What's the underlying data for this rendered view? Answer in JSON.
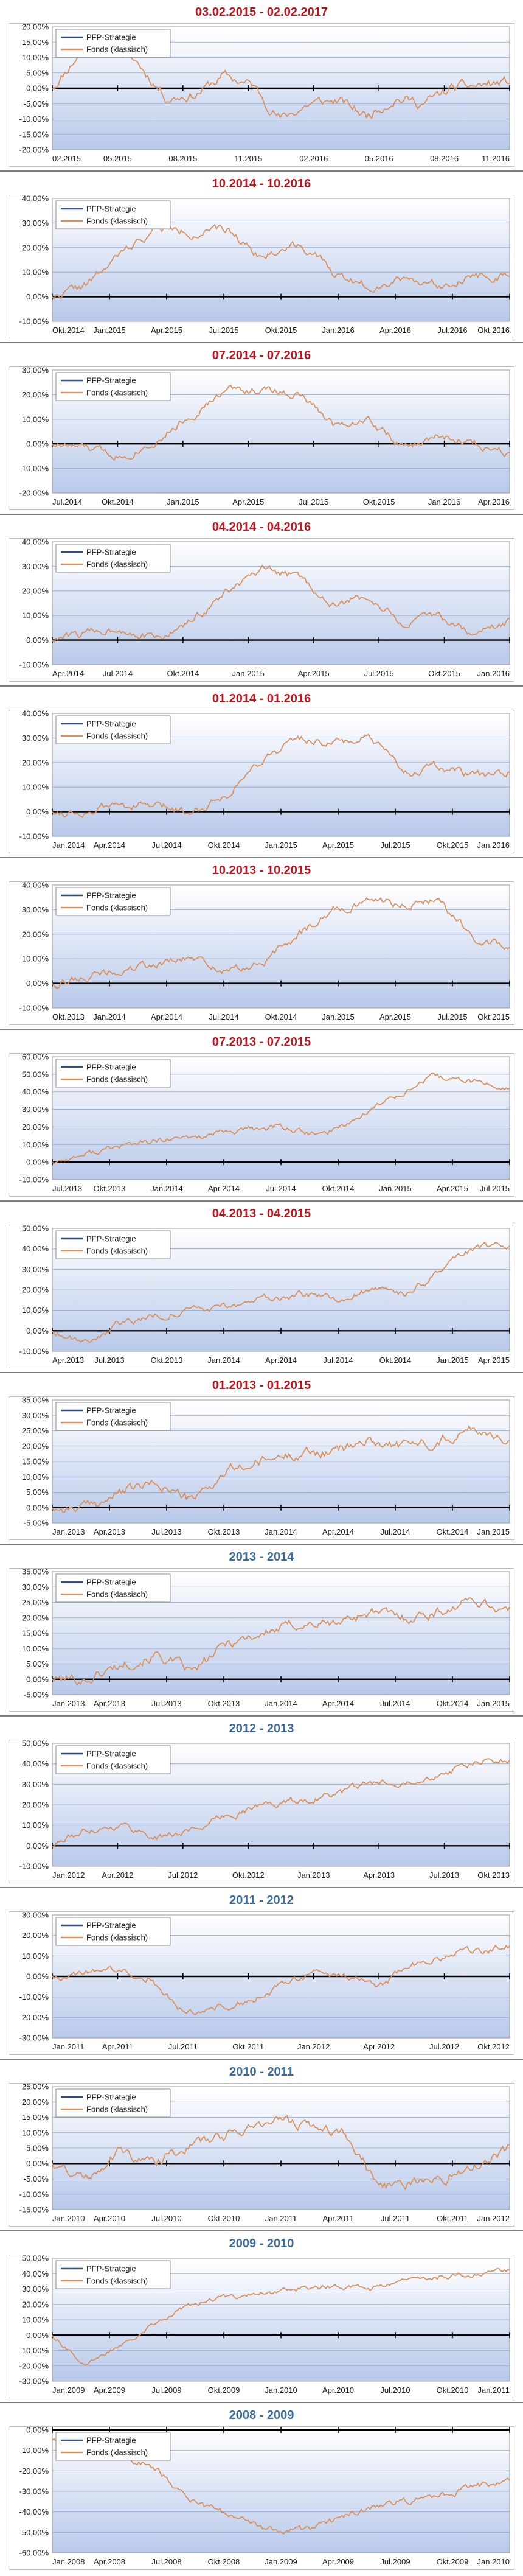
{
  "legend": {
    "strategy_label": "PFP-Strategie",
    "fund_label": "Fonds (klassisch)"
  },
  "colors": {
    "strategy": "#2f4f7f",
    "fund": "#d9915e",
    "title_red": "#c0141c",
    "title_blue": "#3a6a9e",
    "plot_top": "#ffffff",
    "plot_bottom": "#b8c9ea"
  },
  "chart_data": [
    {
      "type": "line",
      "title": "03.02.2015 - 02.02.2017",
      "title_color": "red",
      "yticks": [
        "20,00%",
        "15,00%",
        "10,00%",
        "5,00%",
        "0,00%",
        "-5,00%",
        "-10,00%",
        "-15,00%",
        "-20,00%"
      ],
      "ylim": [
        -20,
        20
      ],
      "xticks": [
        "02.2015",
        "05.2015",
        "08.2015",
        "11.2015",
        "02.2016",
        "05.2016",
        "08.2016",
        "11.2016"
      ],
      "waypoints": [
        0,
        12,
        14,
        8,
        -3,
        -2,
        4,
        1,
        -10,
        -5,
        -4,
        -9,
        -3,
        -5,
        0,
        1,
        2
      ],
      "seed": 11
    },
    {
      "type": "line",
      "title": "10.2014 - 10.2016",
      "title_color": "red",
      "yticks": [
        "40,00%",
        "30,00%",
        "20,00%",
        "10,00%",
        "0,00%",
        "-10,00%"
      ],
      "ylim": [
        -10,
        40
      ],
      "xticks": [
        "Okt.2014",
        "Jan.2015",
        "Apr.2015",
        "Jul.2015",
        "Okt.2015",
        "Jan.2016",
        "Apr.2016",
        "Jul.2016",
        "Okt.2016"
      ],
      "waypoints": [
        0,
        5,
        18,
        28,
        26,
        27,
        16,
        22,
        10,
        4,
        8,
        5,
        9,
        8
      ],
      "seed": 22
    },
    {
      "type": "line",
      "title": "07.2014 - 07.2016",
      "title_color": "red",
      "yticks": [
        "30,00%",
        "20,00%",
        "10,00%",
        "0,00%",
        "-10,00%",
        "-20,00%"
      ],
      "ylim": [
        -20,
        30
      ],
      "xticks": [
        "Jul.2014",
        "Okt.2014",
        "Jan.2015",
        "Apr.2015",
        "Jul.2015",
        "Okt.2015",
        "Jan.2016",
        "Apr.2016"
      ],
      "waypoints": [
        0,
        -2,
        -5,
        2,
        12,
        22,
        22,
        20,
        8,
        10,
        -2,
        3,
        0,
        -3
      ],
      "seed": 33
    },
    {
      "type": "line",
      "title": "04.2014 - 04.2016",
      "title_color": "red",
      "yticks": [
        "40,00%",
        "30,00%",
        "20,00%",
        "10,00%",
        "0,00%",
        "-10,00%"
      ],
      "ylim": [
        -10,
        40
      ],
      "xticks": [
        "Apr.2014",
        "Jul.2014",
        "Okt.2014",
        "Jan.2015",
        "Apr.2015",
        "Jul.2015",
        "Okt.2015",
        "Jan.2016"
      ],
      "waypoints": [
        0,
        3,
        5,
        0,
        8,
        20,
        28,
        26,
        14,
        18,
        6,
        10,
        2,
        8
      ],
      "seed": 44
    },
    {
      "type": "line",
      "title": "01.2014 - 01.2016",
      "title_color": "red",
      "yticks": [
        "40,00%",
        "30,00%",
        "20,00%",
        "10,00%",
        "0,00%",
        "-10,00%"
      ],
      "ylim": [
        -10,
        40
      ],
      "xticks": [
        "Jan.2014",
        "Apr.2014",
        "Jul.2014",
        "Okt.2014",
        "Jan.2015",
        "Apr.2015",
        "Jul.2015",
        "Okt.2015",
        "Jan.2016"
      ],
      "waypoints": [
        0,
        0,
        3,
        2,
        0,
        8,
        22,
        30,
        28,
        30,
        16,
        18,
        14,
        16
      ],
      "seed": 55
    },
    {
      "type": "line",
      "title": "10.2013 - 10.2015",
      "title_color": "red",
      "yticks": [
        "40,00%",
        "30,00%",
        "20,00%",
        "10,00%",
        "0,00%",
        "-10,00%"
      ],
      "ylim": [
        -10,
        40
      ],
      "xticks": [
        "Okt.2013",
        "Jan.2014",
        "Apr.2014",
        "Jul.2014",
        "Okt.2014",
        "Jan.2015",
        "Apr.2015",
        "Jul.2015",
        "Okt.2015"
      ],
      "waypoints": [
        0,
        3,
        5,
        8,
        10,
        5,
        8,
        20,
        30,
        34,
        32,
        34,
        18,
        16
      ],
      "seed": 66
    },
    {
      "type": "line",
      "title": "07.2013 - 07.2015",
      "title_color": "red",
      "yticks": [
        "60,00%",
        "50,00%",
        "40,00%",
        "30,00%",
        "20,00%",
        "10,00%",
        "0,00%",
        "-10,00%"
      ],
      "ylim": [
        -10,
        60
      ],
      "xticks": [
        "Jul.2013",
        "Okt.2013",
        "Jan.2014",
        "Apr.2014",
        "Jul.2014",
        "Okt.2014",
        "Jan.2015",
        "Apr.2015",
        "Jul.2015"
      ],
      "waypoints": [
        0,
        5,
        10,
        12,
        15,
        18,
        20,
        15,
        25,
        38,
        48,
        46,
        42
      ],
      "seed": 77
    },
    {
      "type": "line",
      "title": "04.2013 - 04.2015",
      "title_color": "red",
      "yticks": [
        "50,00%",
        "40,00%",
        "30,00%",
        "20,00%",
        "10,00%",
        "0,00%",
        "-10,00%"
      ],
      "ylim": [
        -10,
        50
      ],
      "xticks": [
        "Apr.2013",
        "Jul.2013",
        "Okt.2013",
        "Jan.2014",
        "Apr.2014",
        "Jul.2014",
        "Okt.2014",
        "Jan.2015",
        "Apr.2015"
      ],
      "waypoints": [
        0,
        -5,
        4,
        8,
        10,
        12,
        15,
        18,
        15,
        20,
        18,
        28,
        40,
        42
      ],
      "seed": 88
    },
    {
      "type": "line",
      "title": "01.2013 - 01.2015",
      "title_color": "red",
      "yticks": [
        "35,00%",
        "30,00%",
        "25,00%",
        "20,00%",
        "15,00%",
        "10,00%",
        "5,00%",
        "0,00%",
        "-5,00%"
      ],
      "ylim": [
        -5,
        35
      ],
      "xticks": [
        "Jan.2013",
        "Apr.2013",
        "Jul.2013",
        "Okt.2013",
        "Jan.2014",
        "Apr.2014",
        "Jul.2014",
        "Okt.2014",
        "Jan.2015"
      ],
      "waypoints": [
        0,
        0,
        5,
        8,
        2,
        12,
        15,
        18,
        18,
        22,
        20,
        22,
        26,
        22
      ],
      "seed": 99
    },
    {
      "type": "line",
      "title": "2013 - 2014",
      "title_color": "blue",
      "yticks": [
        "35,00%",
        "30,00%",
        "25,00%",
        "20,00%",
        "15,00%",
        "10,00%",
        "5,00%",
        "0,00%",
        "-5,00%"
      ],
      "ylim": [
        -5,
        35
      ],
      "xticks": [
        "Jan.2013",
        "Apr.2013",
        "Jul.2013",
        "Okt.2013",
        "Jan.2014",
        "Apr.2014",
        "Jul.2014",
        "Okt.2014",
        "Jan.2015"
      ],
      "waypoints": [
        0,
        0,
        5,
        8,
        2,
        12,
        15,
        18,
        18,
        22,
        20,
        22,
        26,
        22
      ],
      "seed": 101
    },
    {
      "type": "line",
      "title": "2012 - 2013",
      "title_color": "blue",
      "yticks": [
        "50,00%",
        "40,00%",
        "30,00%",
        "20,00%",
        "10,00%",
        "0,00%",
        "-10,00%"
      ],
      "ylim": [
        -10,
        50
      ],
      "xticks": [
        "Jan.2012",
        "Apr.2012",
        "Jul.2012",
        "Okt.2012",
        "Jan.2013",
        "Apr.2013",
        "Jul.2013",
        "Okt.2013"
      ],
      "waypoints": [
        0,
        8,
        10,
        4,
        8,
        15,
        20,
        22,
        25,
        30,
        32,
        35,
        40,
        42
      ],
      "seed": 111
    },
    {
      "type": "line",
      "title": "2011 - 2012",
      "title_color": "blue",
      "yticks": [
        "30,00%",
        "20,00%",
        "10,00%",
        "0,00%",
        "-10,00%",
        "-20,00%",
        "-30,00%"
      ],
      "ylim": [
        -30,
        30
      ],
      "xticks": [
        "Jan.2011",
        "Apr.2011",
        "Jul.2011",
        "Okt.2011",
        "Jan.2012",
        "Apr.2012",
        "Jul.2012",
        "Okt.2012"
      ],
      "waypoints": [
        0,
        2,
        3,
        0,
        -18,
        -15,
        -12,
        -5,
        2,
        0,
        -5,
        5,
        10,
        12,
        15
      ],
      "seed": 121
    },
    {
      "type": "line",
      "title": "2010 - 2011",
      "title_color": "blue",
      "yticks": [
        "25,00%",
        "20,00%",
        "15,00%",
        "10,00%",
        "5,00%",
        "0,00%",
        "-5,00%",
        "-10,00%",
        "-15,00%"
      ],
      "ylim": [
        -15,
        25
      ],
      "xticks": [
        "Jan.2010",
        "Apr.2010",
        "Jul.2010",
        "Okt.2010",
        "Jan.2011",
        "Apr.2011",
        "Jul.2011",
        "Okt.2011",
        "Jan.2012"
      ],
      "waypoints": [
        0,
        -5,
        4,
        0,
        5,
        8,
        12,
        14,
        12,
        10,
        -8,
        -6,
        -5,
        0,
        5
      ],
      "seed": 131
    },
    {
      "type": "line",
      "title": "2009 - 2010",
      "title_color": "blue",
      "yticks": [
        "50,00%",
        "40,00%",
        "30,00%",
        "20,00%",
        "10,00%",
        "0,00%",
        "-10,00%",
        "-20,00%",
        "-30,00%"
      ],
      "ylim": [
        -30,
        50
      ],
      "xticks": [
        "Jan.2009",
        "Apr.2009",
        "Jul.2009",
        "Okt.2009",
        "Jan.2010",
        "Apr.2010",
        "Jul.2010",
        "Okt.2010",
        "Jan.2011"
      ],
      "waypoints": [
        0,
        -20,
        -5,
        10,
        20,
        25,
        28,
        30,
        32,
        30,
        35,
        38,
        40,
        42
      ],
      "seed": 141
    },
    {
      "type": "line",
      "title": "2008 - 2009",
      "title_color": "blue",
      "yticks": [
        "0,00%",
        "-10,00%",
        "-20,00%",
        "-30,00%",
        "-40,00%",
        "-50,00%",
        "-60,00%"
      ],
      "ylim": [
        -60,
        0
      ],
      "xticks": [
        "Jan.2008",
        "Apr.2008",
        "Jul.2008",
        "Okt.2008",
        "Jan.2009",
        "Apr.2009",
        "Jul.2009",
        "Okt.2009",
        "Jan.2010"
      ],
      "waypoints": [
        -5,
        -8,
        -12,
        -20,
        -35,
        -42,
        -48,
        -50,
        -45,
        -38,
        -35,
        -32,
        -28,
        -25
      ],
      "seed": 151
    }
  ]
}
